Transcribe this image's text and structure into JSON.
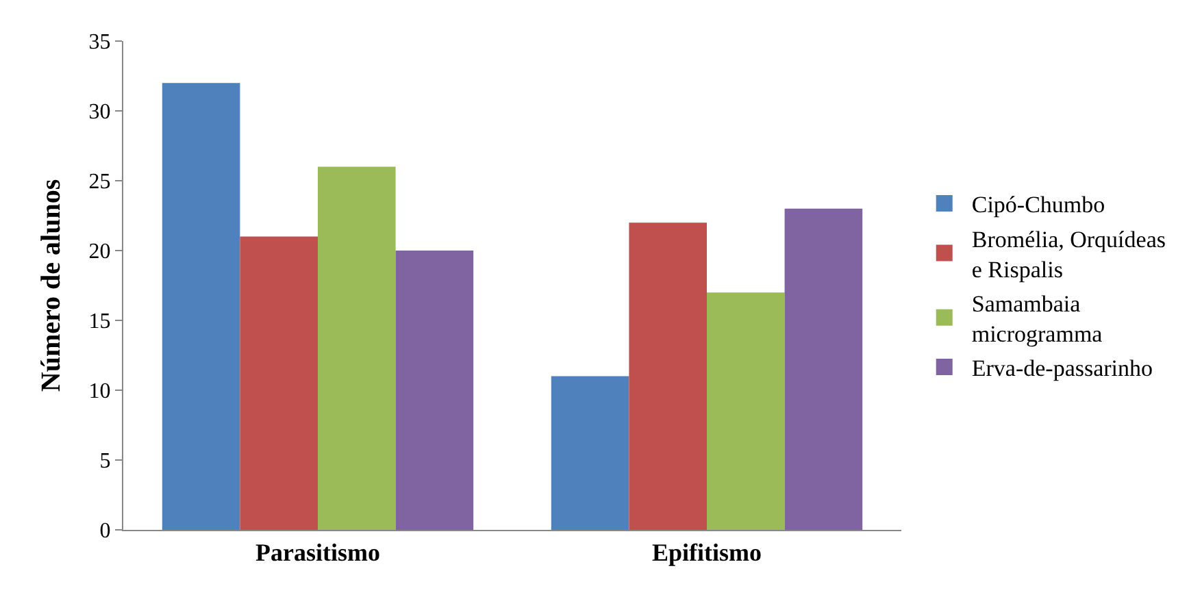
{
  "chart_data": {
    "type": "bar",
    "ylabel": "Número de alunos",
    "categories": [
      "Parasitismo",
      "Epifitismo"
    ],
    "series": [
      {
        "name": "Cipó-Chumbo",
        "color": "#4f81bd",
        "values": [
          32,
          11
        ]
      },
      {
        "name": "Bromélia, Orquídeas e Rispalis",
        "color": "#c0504d",
        "values": [
          21,
          22
        ]
      },
      {
        "name": "Samambaia microgramma",
        "color": "#9bbb59",
        "values": [
          26,
          17
        ]
      },
      {
        "name": "Erva-de-passarinho",
        "color": "#8064a2",
        "values": [
          20,
          23
        ]
      }
    ],
    "ylim": [
      0,
      35
    ],
    "yticks": [
      0,
      5,
      10,
      15,
      20,
      25,
      30,
      35
    ],
    "legend": "right"
  }
}
